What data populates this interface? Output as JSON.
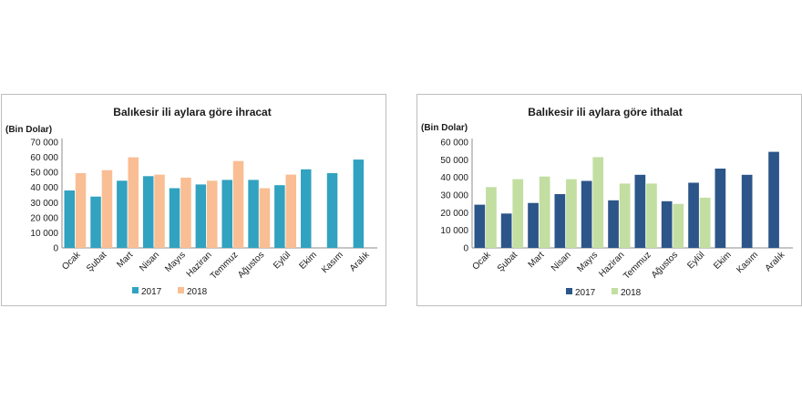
{
  "chart_data": [
    {
      "type": "bar",
      "title": "Balıkesir ili aylara göre ihracat",
      "ylabel": "(Bin  Dolar)",
      "ylim": [
        0,
        70000
      ],
      "yticks": [
        "0",
        "10 000",
        "20 000",
        "30 000",
        "40 000",
        "50 000",
        "60 000",
        "70 000"
      ],
      "categories": [
        "Ocak",
        "Şubat",
        "Mart",
        "Nisan",
        "Mayıs",
        "Haziran",
        "Temmuz",
        "Ağustos",
        "Eylül",
        "Ekim",
        "Kasım",
        "Aralık"
      ],
      "series": [
        {
          "name": "2017",
          "color": "#31a2bf",
          "values": [
            38000,
            34000,
            44500,
            47500,
            39500,
            42000,
            45000,
            45000,
            41500,
            52000,
            49500,
            58500
          ]
        },
        {
          "name": "2018",
          "color": "#f9be93",
          "values": [
            49500,
            51500,
            60000,
            48500,
            46500,
            44500,
            57500,
            39500,
            48500,
            null,
            null,
            null
          ]
        }
      ],
      "legend": "bottom"
    },
    {
      "type": "bar",
      "title": "Balıkesir ili aylara göre ithalat",
      "ylabel": "(Bin  Dolar)",
      "ylim": [
        0,
        60000
      ],
      "yticks": [
        "0",
        "10 000",
        "20 000",
        "30 000",
        "40 000",
        "50 000",
        "60 000"
      ],
      "categories": [
        "Ocak",
        "Şubat",
        "Mart",
        "Nisan",
        "Mayıs",
        "Haziran",
        "Temmuz",
        "Ağustos",
        "Eylül",
        "Ekim",
        "Kasım",
        "Aralık"
      ],
      "series": [
        {
          "name": "2017",
          "color": "#2c5589",
          "values": [
            24500,
            19500,
            25500,
            30500,
            38000,
            27000,
            41500,
            26500,
            37000,
            45000,
            41500,
            54500
          ]
        },
        {
          "name": "2018",
          "color": "#c3dea1",
          "values": [
            34500,
            39000,
            40500,
            39000,
            51500,
            36500,
            36500,
            25000,
            28500,
            null,
            null,
            null
          ]
        }
      ],
      "legend": "bottom"
    }
  ]
}
